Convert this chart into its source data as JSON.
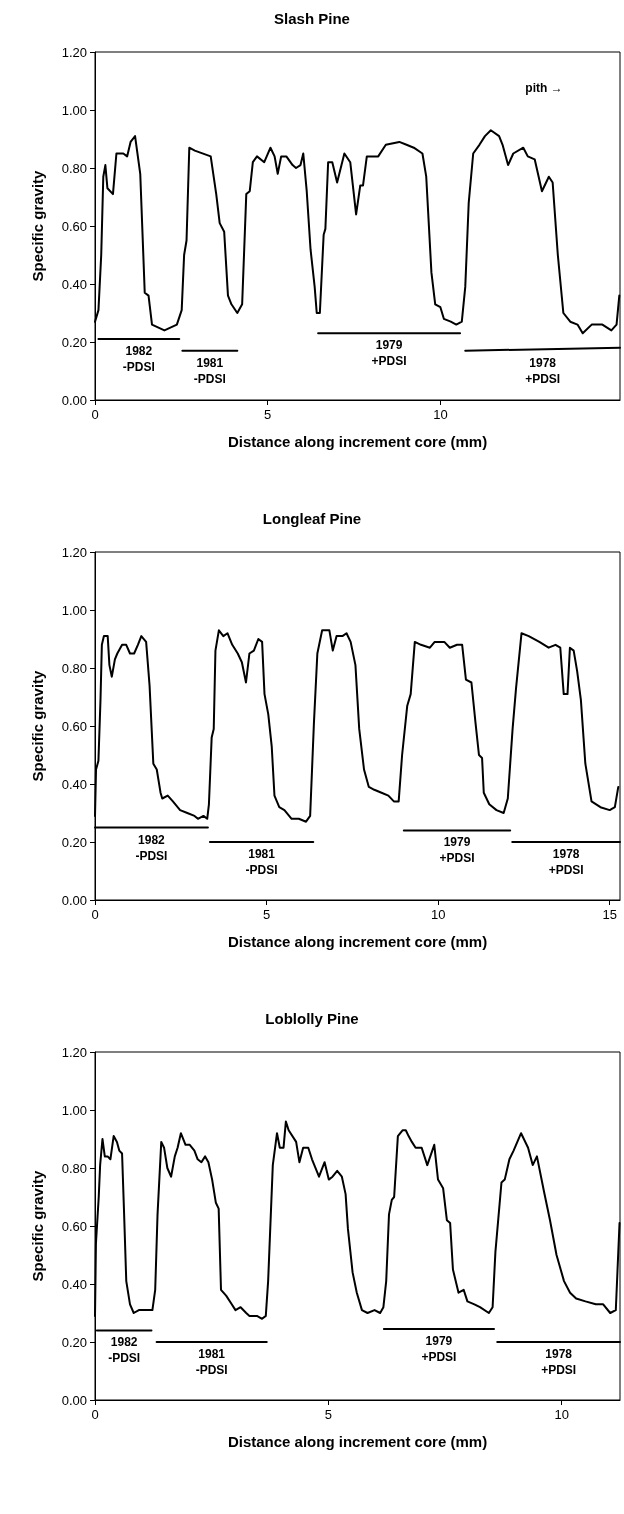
{
  "chart_data": [
    {
      "type": "line",
      "title": "Slash Pine",
      "xlabel": "Distance along increment core (mm)",
      "ylabel": "Specific gravity",
      "xlim": [
        0,
        15.2
      ],
      "xticks": [
        0,
        5,
        10
      ],
      "ylim": [
        0,
        1.2
      ],
      "yticks": [
        {
          "value": 0,
          "label": "0.00"
        },
        {
          "value": 0.2,
          "label": "0.20"
        },
        {
          "value": 0.4,
          "label": "0.40"
        },
        {
          "value": 0.6,
          "label": "0.60"
        },
        {
          "value": 0.8,
          "label": "0.80"
        },
        {
          "value": 1,
          "label": "1.00"
        },
        {
          "value": 1.2,
          "label": "1.20"
        }
      ],
      "series": [
        {
          "color": "#000000",
          "x": [
            0,
            0.1,
            0.18,
            0.24,
            0.3,
            0.36,
            0.52,
            0.62,
            0.82,
            0.93,
            1.03,
            1.16,
            1.31,
            1.44,
            1.55,
            1.65,
            2.01,
            2.37,
            2.51,
            2.58,
            2.65,
            2.73,
            2.89,
            3.35,
            3.51,
            3.61,
            3.74,
            3.85,
            3.95,
            4.12,
            4.26,
            4.38,
            4.48,
            4.57,
            4.69,
            4.9,
            5.08,
            5.2,
            5.29,
            5.39,
            5.54,
            5.72,
            5.82,
            5.95,
            6.03,
            6.13,
            6.24,
            6.36,
            6.42,
            6.51,
            6.62,
            6.67,
            6.75,
            6.87,
            7.01,
            7.22,
            7.39,
            7.56,
            7.68,
            7.76,
            7.87,
            8.2,
            8.42,
            8.81,
            9.02,
            9.23,
            9.48,
            9.59,
            9.74,
            9.85,
            10,
            10.1,
            10.3,
            10.46,
            10.62,
            10.72,
            10.82,
            10.95,
            11.13,
            11.29,
            11.46,
            11.7,
            11.8,
            11.96,
            12.11,
            12.4,
            12.53,
            12.73,
            12.94,
            13.14,
            13.25,
            13.4,
            13.56,
            13.76,
            13.97,
            14.12,
            14.38,
            14.69,
            14.95,
            15.1,
            15.18
          ],
          "values": [
            0.27,
            0.31,
            0.5,
            0.77,
            0.81,
            0.73,
            0.71,
            0.85,
            0.85,
            0.84,
            0.89,
            0.91,
            0.78,
            0.37,
            0.36,
            0.26,
            0.24,
            0.26,
            0.31,
            0.5,
            0.55,
            0.87,
            0.86,
            0.84,
            0.71,
            0.61,
            0.58,
            0.36,
            0.33,
            0.3,
            0.33,
            0.71,
            0.72,
            0.82,
            0.84,
            0.82,
            0.87,
            0.84,
            0.78,
            0.84,
            0.84,
            0.81,
            0.8,
            0.81,
            0.85,
            0.72,
            0.52,
            0.39,
            0.3,
            0.3,
            0.57,
            0.59,
            0.82,
            0.82,
            0.75,
            0.85,
            0.82,
            0.64,
            0.74,
            0.74,
            0.84,
            0.84,
            0.88,
            0.89,
            0.88,
            0.87,
            0.85,
            0.77,
            0.44,
            0.33,
            0.32,
            0.28,
            0.27,
            0.26,
            0.27,
            0.39,
            0.68,
            0.85,
            0.88,
            0.91,
            0.93,
            0.91,
            0.88,
            0.81,
            0.85,
            0.87,
            0.84,
            0.83,
            0.72,
            0.77,
            0.75,
            0.5,
            0.3,
            0.27,
            0.26,
            0.23,
            0.26,
            0.26,
            0.24,
            0.26,
            0.36
          ]
        },
        {
          "color": "#000000",
          "x": [
            0.1,
            2.44
          ],
          "values": [
            0.21,
            0.21
          ]
        },
        {
          "color": "#000000",
          "x": [
            2.53,
            4.12
          ],
          "values": [
            0.17,
            0.17
          ]
        },
        {
          "color": "#000000",
          "x": [
            6.46,
            10.57
          ],
          "values": [
            0.23,
            0.23
          ]
        },
        {
          "color": "#000000",
          "x": [
            10.72,
            15.2
          ],
          "values": [
            0.17,
            0.18
          ]
        }
      ],
      "annotations": [
        "1982\n-PDSI",
        "1981\n-PDSI",
        "1979\n+PDSI",
        "1978\n+PDSI",
        "pith →"
      ]
    },
    {
      "type": "line",
      "title": "Longleaf Pine",
      "xlabel": "Distance along increment core (mm)",
      "ylabel": "Specific gravity",
      "xlim": [
        0,
        15.3
      ],
      "xticks": [
        0,
        5,
        10,
        15
      ],
      "ylim": [
        0,
        1.2
      ],
      "yticks": [
        {
          "value": 0,
          "label": "0.00"
        },
        {
          "value": 0.2,
          "label": "0.20"
        },
        {
          "value": 0.4,
          "label": "0.40"
        },
        {
          "value": 0.6,
          "label": "0.60"
        },
        {
          "value": 0.8,
          "label": "0.80"
        },
        {
          "value": 1,
          "label": "1.00"
        },
        {
          "value": 1.2,
          "label": "1.20"
        }
      ],
      "series": [
        {
          "color": "#000000",
          "x": [
            0,
            0.03,
            0.1,
            0.16,
            0.2,
            0.26,
            0.37,
            0.42,
            0.49,
            0.58,
            0.65,
            0.79,
            0.91,
            1.02,
            1.14,
            1.25,
            1.35,
            1.49,
            1.59,
            1.7,
            1.8,
            1.91,
            1.96,
            2.12,
            2.27,
            2.48,
            2.69,
            2.9,
            3,
            3.16,
            3.27,
            3.32,
            3.4,
            3.46,
            3.51,
            3.61,
            3.74,
            3.86,
            4,
            4.16,
            4.28,
            4.4,
            4.5,
            4.63,
            4.76,
            4.87,
            4.94,
            5.05,
            5.15,
            5.23,
            5.37,
            5.52,
            5.73,
            5.94,
            6.15,
            6.27,
            6.38,
            6.48,
            6.62,
            6.83,
            6.93,
            7.04,
            7.21,
            7.33,
            7.45,
            7.59,
            7.7,
            7.84,
            7.98,
            8.14,
            8.35,
            8.55,
            8.71,
            8.85,
            8.95,
            9.1,
            9.2,
            9.32,
            9.5,
            9.76,
            9.9,
            10.18,
            10.34,
            10.55,
            10.7,
            10.81,
            10.97,
            11.09,
            11.19,
            11.28,
            11.33,
            11.49,
            11.7,
            11.91,
            12.03,
            12.17,
            12.27,
            12.43,
            12.64,
            12.95,
            13.22,
            13.42,
            13.56,
            13.66,
            13.77,
            13.84,
            13.95,
            14.05,
            14.16,
            14.29,
            14.47,
            14.73,
            15,
            15.15,
            15.25
          ],
          "values": [
            0.29,
            0.45,
            0.48,
            0.69,
            0.88,
            0.91,
            0.91,
            0.81,
            0.77,
            0.83,
            0.85,
            0.88,
            0.88,
            0.85,
            0.85,
            0.88,
            0.91,
            0.89,
            0.74,
            0.47,
            0.45,
            0.37,
            0.35,
            0.36,
            0.34,
            0.31,
            0.3,
            0.29,
            0.28,
            0.29,
            0.28,
            0.33,
            0.56,
            0.59,
            0.86,
            0.93,
            0.91,
            0.92,
            0.88,
            0.85,
            0.82,
            0.75,
            0.85,
            0.86,
            0.9,
            0.89,
            0.71,
            0.64,
            0.53,
            0.36,
            0.32,
            0.31,
            0.28,
            0.28,
            0.27,
            0.29,
            0.61,
            0.85,
            0.93,
            0.93,
            0.86,
            0.91,
            0.91,
            0.92,
            0.89,
            0.81,
            0.59,
            0.45,
            0.39,
            0.38,
            0.37,
            0.36,
            0.34,
            0.34,
            0.5,
            0.67,
            0.71,
            0.89,
            0.88,
            0.87,
            0.89,
            0.89,
            0.87,
            0.88,
            0.88,
            0.76,
            0.75,
            0.61,
            0.5,
            0.49,
            0.37,
            0.33,
            0.31,
            0.3,
            0.35,
            0.59,
            0.73,
            0.92,
            0.91,
            0.89,
            0.87,
            0.88,
            0.87,
            0.71,
            0.71,
            0.87,
            0.86,
            0.79,
            0.69,
            0.47,
            0.34,
            0.32,
            0.31,
            0.32,
            0.39
          ]
        },
        {
          "color": "#000000",
          "x": [
            0,
            3.29
          ],
          "values": [
            0.25,
            0.25
          ]
        },
        {
          "color": "#000000",
          "x": [
            3.35,
            6.36
          ],
          "values": [
            0.2,
            0.2
          ]
        },
        {
          "color": "#000000",
          "x": [
            9,
            12.1
          ],
          "values": [
            0.24,
            0.24
          ]
        },
        {
          "color": "#000000",
          "x": [
            12.16,
            15.3
          ],
          "values": [
            0.2,
            0.2
          ]
        }
      ],
      "annotations": [
        "1982\n-PDSI",
        "1981\n-PDSI",
        "1979\n+PDSI",
        "1978\n+PDSI"
      ]
    },
    {
      "type": "line",
      "title": "Loblolly Pine",
      "xlabel": "Distance along increment core (mm)",
      "ylabel": "Specific gravity",
      "xlim": [
        0,
        11.25
      ],
      "xticks": [
        0,
        5,
        10
      ],
      "ylim": [
        0,
        1.2
      ],
      "yticks": [
        {
          "value": 0,
          "label": "0.00"
        },
        {
          "value": 0.2,
          "label": "0.20"
        },
        {
          "value": 0.4,
          "label": "0.40"
        },
        {
          "value": 0.6,
          "label": "0.60"
        },
        {
          "value": 0.8,
          "label": "0.80"
        },
        {
          "value": 1,
          "label": "1.00"
        },
        {
          "value": 1.2,
          "label": "1.20"
        }
      ],
      "series": [
        {
          "color": "#000000",
          "x": [
            0,
            0.02,
            0.08,
            0.11,
            0.16,
            0.21,
            0.27,
            0.33,
            0.4,
            0.47,
            0.52,
            0.58,
            0.62,
            0.67,
            0.75,
            0.83,
            0.94,
            1.09,
            1.23,
            1.29,
            1.34,
            1.42,
            1.48,
            1.55,
            1.63,
            1.71,
            1.77,
            1.84,
            1.94,
            2.03,
            2.13,
            2.2,
            2.28,
            2.36,
            2.43,
            2.51,
            2.59,
            2.65,
            2.7,
            2.81,
            2.93,
            3.01,
            3.12,
            3.24,
            3.31,
            3.47,
            3.58,
            3.66,
            3.71,
            3.81,
            3.9,
            3.96,
            4.04,
            4.09,
            4.15,
            4.31,
            4.38,
            4.46,
            4.57,
            4.65,
            4.8,
            4.92,
            5.01,
            5.09,
            5.19,
            5.29,
            5.37,
            5.42,
            5.52,
            5.61,
            5.72,
            5.84,
            5.99,
            6.11,
            6.18,
            6.24,
            6.3,
            6.36,
            6.41,
            6.49,
            6.59,
            6.66,
            6.72,
            6.79,
            6.87,
            7,
            7.12,
            7.27,
            7.35,
            7.46,
            7.54,
            7.61,
            7.67,
            7.79,
            7.9,
            7.98,
            8.13,
            8.25,
            8.44,
            8.52,
            8.58,
            8.71,
            8.78,
            8.88,
            8.97,
            9.13,
            9.28,
            9.38,
            9.47,
            9.62,
            9.75,
            9.89,
            10.05,
            10.18,
            10.31,
            10.51,
            10.73,
            10.89,
            11.04,
            11.16,
            11.24
          ],
          "values": [
            0.29,
            0.54,
            0.7,
            0.81,
            0.9,
            0.84,
            0.84,
            0.83,
            0.91,
            0.89,
            0.86,
            0.85,
            0.66,
            0.41,
            0.33,
            0.3,
            0.31,
            0.31,
            0.31,
            0.38,
            0.64,
            0.89,
            0.87,
            0.8,
            0.77,
            0.84,
            0.87,
            0.92,
            0.88,
            0.88,
            0.86,
            0.83,
            0.82,
            0.84,
            0.82,
            0.76,
            0.68,
            0.66,
            0.38,
            0.36,
            0.33,
            0.31,
            0.32,
            0.3,
            0.29,
            0.29,
            0.28,
            0.29,
            0.41,
            0.81,
            0.92,
            0.87,
            0.87,
            0.96,
            0.93,
            0.89,
            0.82,
            0.87,
            0.87,
            0.83,
            0.77,
            0.82,
            0.76,
            0.77,
            0.79,
            0.77,
            0.71,
            0.59,
            0.44,
            0.37,
            0.31,
            0.3,
            0.31,
            0.3,
            0.32,
            0.41,
            0.64,
            0.69,
            0.7,
            0.91,
            0.93,
            0.93,
            0.91,
            0.89,
            0.87,
            0.87,
            0.81,
            0.88,
            0.76,
            0.73,
            0.62,
            0.61,
            0.45,
            0.37,
            0.38,
            0.34,
            0.33,
            0.32,
            0.3,
            0.32,
            0.51,
            0.75,
            0.76,
            0.83,
            0.86,
            0.92,
            0.87,
            0.81,
            0.84,
            0.72,
            0.62,
            0.5,
            0.41,
            0.37,
            0.35,
            0.34,
            0.33,
            0.33,
            0.3,
            0.31,
            0.61
          ]
        },
        {
          "color": "#000000",
          "x": [
            0.04,
            1.21
          ],
          "values": [
            0.24,
            0.24
          ]
        },
        {
          "color": "#000000",
          "x": [
            1.32,
            3.68
          ],
          "values": [
            0.2,
            0.2
          ]
        },
        {
          "color": "#000000",
          "x": [
            6.19,
            8.55
          ],
          "values": [
            0.245,
            0.245
          ]
        },
        {
          "color": "#000000",
          "x": [
            8.62,
            11.25
          ],
          "values": [
            0.2,
            0.2
          ]
        }
      ],
      "annotations": [
        "1982\n-PDSI",
        "1981\n-PDSI",
        "1979\n+PDSI",
        "1978\n+PDSI"
      ]
    }
  ]
}
